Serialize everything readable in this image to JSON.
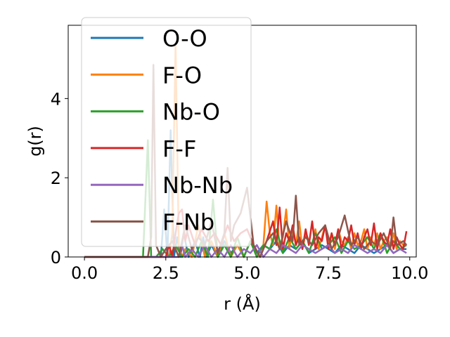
{
  "chart_data": {
    "type": "line",
    "xlabel": "r (Å)",
    "ylabel": "g(r)",
    "xlim": [
      -0.5,
      10.2
    ],
    "ylim": [
      0,
      5.85
    ],
    "xticks": [
      0.0,
      2.5,
      5.0,
      7.5,
      10.0
    ],
    "xtick_labels": [
      "0.0",
      "2.5",
      "5.0",
      "7.5",
      "10.0"
    ],
    "yticks": [
      0,
      2,
      4
    ],
    "ytick_labels": [
      "0",
      "2",
      "4"
    ],
    "grid": false,
    "legend_position": "upper-left",
    "series": [
      {
        "name": "O-O",
        "color": "#1f77b4",
        "x": [
          0.0,
          2.35,
          2.45,
          2.55,
          2.65,
          2.75,
          2.85,
          2.95,
          3.05,
          3.2,
          3.4,
          3.55,
          3.65,
          3.75,
          3.9,
          4.1,
          4.3,
          4.5,
          4.7,
          4.9,
          5.1,
          5.3,
          5.5,
          5.7,
          5.9,
          6.1,
          6.3,
          6.5,
          6.7,
          6.9,
          7.1,
          7.3,
          7.5,
          7.7,
          7.9,
          8.1,
          8.3,
          8.5,
          8.7,
          8.9,
          9.1,
          9.3,
          9.5,
          9.7,
          9.9
        ],
        "y": [
          0.0,
          0.0,
          1.2,
          0.0,
          3.2,
          0.0,
          0.5,
          0.0,
          0.6,
          0.0,
          0.4,
          0.0,
          0.5,
          0.0,
          0.3,
          0.0,
          0.4,
          0.1,
          0.3,
          0.0,
          0.4,
          0.1,
          0.3,
          0.2,
          0.4,
          0.1,
          0.3,
          0.2,
          0.4,
          0.1,
          0.2,
          0.3,
          0.2,
          0.1,
          0.3,
          0.2,
          0.1,
          0.3,
          0.2,
          0.1,
          0.2,
          0.3,
          0.1,
          0.2,
          0.2
        ]
      },
      {
        "name": "F-O",
        "color": "#ff7f0e",
        "x": [
          0.0,
          2.6,
          2.7,
          2.8,
          2.9,
          3.0,
          3.1,
          3.3,
          3.5,
          3.7,
          3.9,
          4.1,
          4.3,
          4.5,
          4.7,
          4.9,
          5.1,
          5.3,
          5.5,
          5.6,
          5.7,
          5.8,
          5.9,
          6.0,
          6.1,
          6.2,
          6.3,
          6.4,
          6.5,
          6.6,
          6.7,
          6.8,
          6.9,
          7.0,
          7.1,
          7.2,
          7.3,
          7.4,
          7.5,
          7.6,
          7.7,
          7.8,
          7.9,
          8.0,
          8.1,
          8.2,
          8.3,
          8.4,
          8.5,
          8.6,
          8.7,
          8.8,
          8.9,
          9.0,
          9.1,
          9.2,
          9.3,
          9.4,
          9.5,
          9.6,
          9.7,
          9.8,
          9.9
        ],
        "y": [
          0.0,
          0.0,
          0.6,
          5.4,
          0.3,
          0.0,
          0.2,
          0.0,
          0.8,
          0.0,
          0.4,
          0.0,
          0.6,
          0.0,
          0.3,
          0.0,
          0.4,
          0.0,
          0.3,
          1.4,
          0.6,
          0.3,
          1.3,
          0.2,
          0.5,
          1.2,
          0.2,
          0.8,
          0.3,
          0.9,
          0.2,
          0.6,
          0.4,
          0.3,
          0.7,
          0.2,
          0.5,
          0.8,
          0.3,
          0.6,
          0.2,
          0.7,
          0.4,
          0.3,
          0.5,
          0.2,
          0.6,
          0.3,
          0.4,
          0.7,
          0.2,
          0.5,
          0.3,
          0.6,
          0.2,
          0.4,
          0.5,
          0.3,
          0.6,
          0.2,
          0.4,
          0.3,
          0.3
        ]
      },
      {
        "name": "Nb-O",
        "color": "#2ca02c",
        "x": [
          0.0,
          1.8,
          1.95,
          2.05,
          2.2,
          2.4,
          2.6,
          2.8,
          3.0,
          3.2,
          3.4,
          3.6,
          3.8,
          3.95,
          4.1,
          4.3,
          4.5,
          4.7,
          4.9,
          5.1,
          5.3,
          5.5,
          5.7,
          5.9,
          6.1,
          6.3,
          6.5,
          6.7,
          6.9,
          7.1,
          7.3,
          7.5,
          7.7,
          7.9,
          8.1,
          8.3,
          8.5,
          8.7,
          8.9,
          9.1,
          9.3,
          9.5,
          9.7,
          9.9
        ],
        "y": [
          0.0,
          0.0,
          2.95,
          0.0,
          0.0,
          0.2,
          0.0,
          0.3,
          0.0,
          0.2,
          0.0,
          0.4,
          0.0,
          1.45,
          0.0,
          0.3,
          0.0,
          0.5,
          0.0,
          0.4,
          0.0,
          0.3,
          0.2,
          0.7,
          0.1,
          0.5,
          0.2,
          0.4,
          0.1,
          0.6,
          0.2,
          0.3,
          0.5,
          0.1,
          0.4,
          0.2,
          0.3,
          0.5,
          0.2,
          0.6,
          0.1,
          0.4,
          0.2,
          0.3
        ]
      },
      {
        "name": "F-F",
        "color": "#d62728",
        "x": [
          0.0,
          2.5,
          2.6,
          2.7,
          2.8,
          2.9,
          3.0,
          3.1,
          3.2,
          3.4,
          3.6,
          3.8,
          4.0,
          4.2,
          4.4,
          4.6,
          4.8,
          5.0,
          5.2,
          5.4,
          5.6,
          5.8,
          5.9,
          6.0,
          6.1,
          6.2,
          6.3,
          6.4,
          6.5,
          6.6,
          6.7,
          6.8,
          6.9,
          7.0,
          7.1,
          7.2,
          7.3,
          7.4,
          7.5,
          7.6,
          7.7,
          7.8,
          7.9,
          8.0,
          8.1,
          8.2,
          8.3,
          8.4,
          8.5,
          8.6,
          8.7,
          8.8,
          8.9,
          9.0,
          9.1,
          9.2,
          9.3,
          9.4,
          9.5,
          9.6,
          9.7,
          9.8,
          9.9
        ],
        "y": [
          0.0,
          0.0,
          0.3,
          0.0,
          0.6,
          1.1,
          1.2,
          0.4,
          0.8,
          0.3,
          0.7,
          0.4,
          0.6,
          0.3,
          0.8,
          0.4,
          0.6,
          0.7,
          0.3,
          0.0,
          0.4,
          0.9,
          0.3,
          1.25,
          0.2,
          0.6,
          0.4,
          0.8,
          0.3,
          0.5,
          0.2,
          0.7,
          0.3,
          0.9,
          0.2,
          0.5,
          0.4,
          0.8,
          0.2,
          0.6,
          0.3,
          0.7,
          0.2,
          0.5,
          0.4,
          0.8,
          0.3,
          0.6,
          0.2,
          0.5,
          0.7,
          0.3,
          0.85,
          0.2,
          0.6,
          0.4,
          0.3,
          0.7,
          0.2,
          0.5,
          0.3,
          0.2,
          0.65
        ]
      },
      {
        "name": "Nb-Nb",
        "color": "#9467bd",
        "x": [
          0.0,
          2.9,
          3.0,
          3.1,
          3.3,
          3.5,
          3.7,
          3.9,
          4.1,
          4.3,
          4.5,
          4.7,
          4.9,
          5.1,
          5.3,
          5.5,
          5.7,
          5.9,
          6.1,
          6.3,
          6.5,
          6.7,
          6.9,
          7.1,
          7.3,
          7.5,
          7.7,
          7.9,
          8.1,
          8.3,
          8.5,
          8.7,
          8.9,
          9.1,
          9.3,
          9.5,
          9.7,
          9.9
        ],
        "y": [
          0.0,
          0.0,
          0.3,
          0.0,
          0.2,
          0.0,
          0.3,
          0.0,
          0.2,
          0.0,
          0.3,
          0.0,
          0.2,
          0.1,
          0.3,
          0.0,
          0.2,
          0.1,
          0.3,
          0.2,
          0.1,
          0.3,
          0.2,
          0.1,
          0.2,
          0.3,
          0.1,
          0.2,
          0.1,
          0.3,
          0.2,
          0.1,
          0.2,
          0.1,
          0.3,
          0.1,
          0.2,
          0.1
        ]
      },
      {
        "name": "F-Nb",
        "color": "#8c564b",
        "x": [
          0.0,
          1.95,
          2.05,
          2.12,
          2.2,
          2.35,
          2.5,
          2.7,
          2.9,
          3.1,
          3.3,
          3.5,
          3.7,
          3.9,
          4.1,
          4.3,
          4.4,
          4.5,
          4.6,
          4.8,
          5.0,
          5.2,
          5.4,
          5.6,
          5.8,
          6.0,
          6.2,
          6.4,
          6.5,
          6.6,
          6.8,
          7.0,
          7.2,
          7.4,
          7.6,
          7.8,
          8.0,
          8.2,
          8.4,
          8.6,
          8.8,
          9.0,
          9.2,
          9.4,
          9.5,
          9.6,
          9.8,
          9.9
        ],
        "y": [
          0.0,
          0.0,
          0.5,
          4.85,
          0.3,
          0.0,
          0.2,
          0.4,
          0.0,
          0.8,
          0.2,
          0.5,
          0.3,
          0.9,
          0.1,
          0.6,
          2.25,
          0.4,
          0.8,
          1.1,
          1.75,
          0.3,
          0.0,
          0.4,
          0.6,
          0.2,
          0.9,
          0.4,
          1.55,
          0.3,
          0.5,
          0.3,
          0.6,
          0.8,
          0.2,
          0.5,
          1.05,
          0.3,
          0.5,
          0.2,
          0.4,
          0.3,
          0.6,
          0.2,
          1.0,
          0.3,
          0.4,
          0.3
        ]
      }
    ]
  }
}
